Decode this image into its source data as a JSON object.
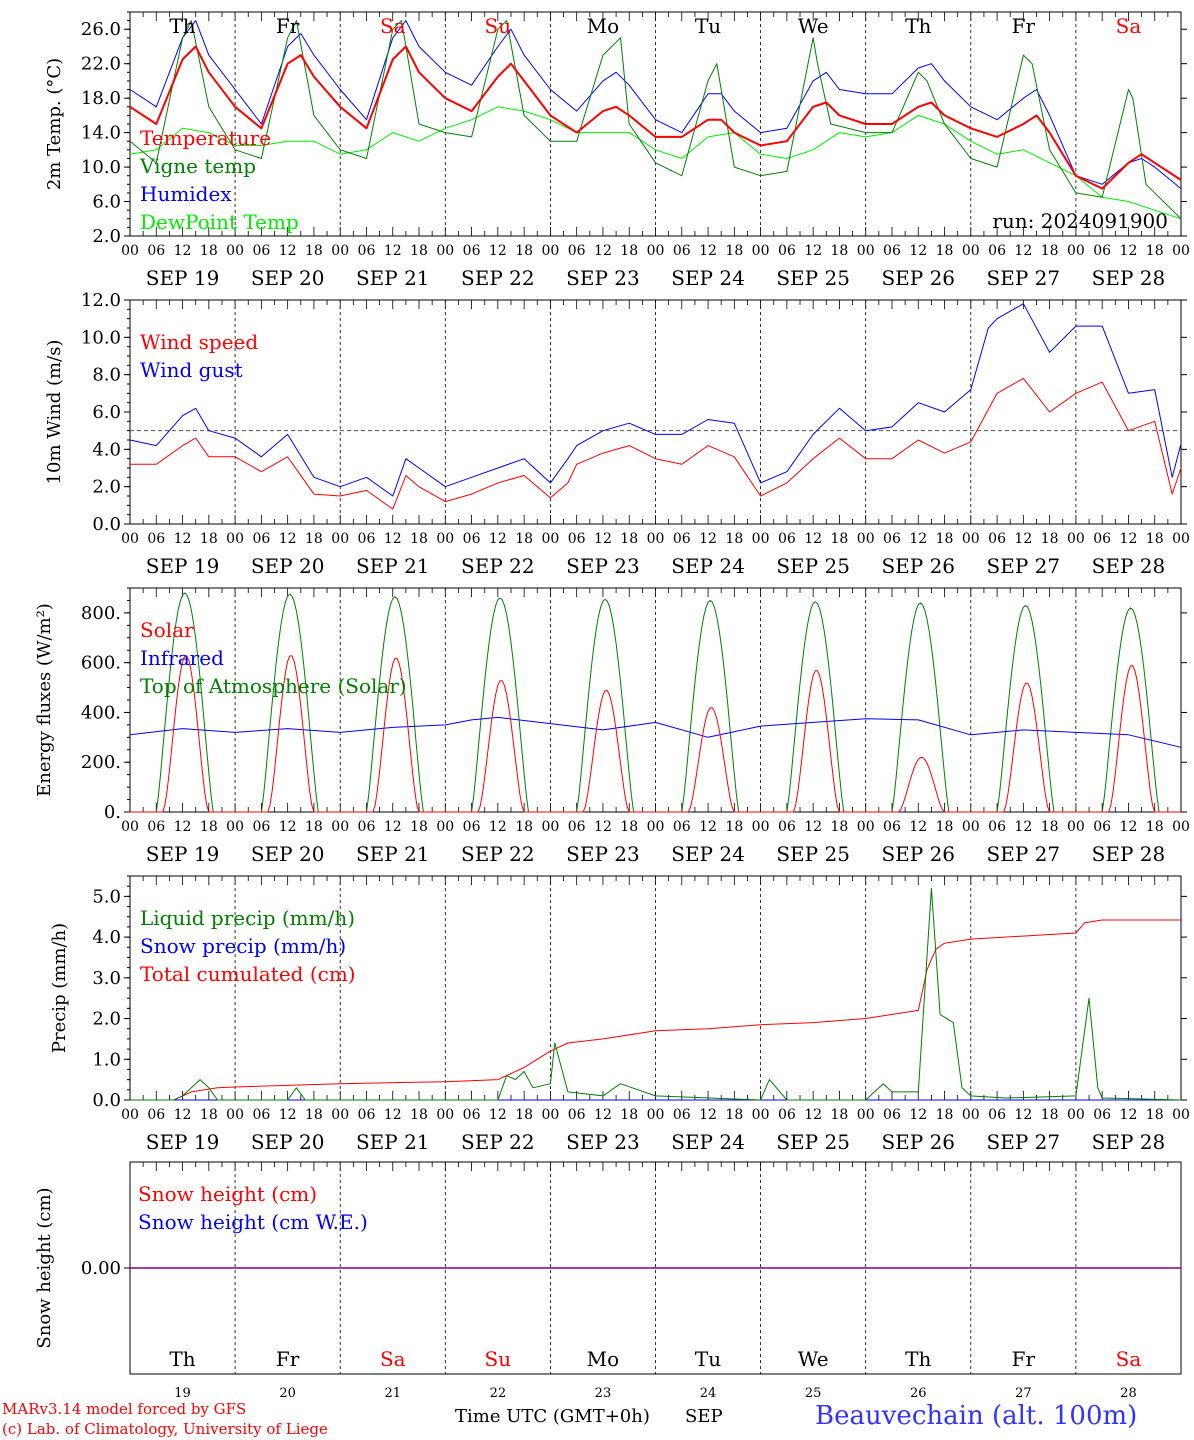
{
  "days": [
    "Th",
    "Fr",
    "Sa",
    "Su",
    "Mo",
    "Tu",
    "We",
    "Th",
    "Fr",
    "Sa"
  ],
  "weekend_days": [
    "Sa",
    "Su"
  ],
  "day_numbers": [
    "19",
    "20",
    "21",
    "22",
    "23",
    "24",
    "25",
    "26",
    "27",
    "28"
  ],
  "date_labels": [
    "SEP 19",
    "SEP 20",
    "SEP 21",
    "SEP 22",
    "SEP 23",
    "SEP 24",
    "SEP 25",
    "SEP 26",
    "SEP 27",
    "SEP 28"
  ],
  "hour_ticks": [
    "00",
    "06",
    "12",
    "18"
  ],
  "run_label": "run: 2024091900",
  "footer": {
    "model": "MARv3.14 model forced by GFS",
    "credit": "(c) Lab. of Climatology, University of Liege",
    "xaxis": "Time UTC (GMT+0h)",
    "month": "SEP",
    "station": "Beauvechain (alt. 100m)"
  },
  "colors": {
    "red": "#ff0000",
    "green": "#008000",
    "blue": "#0000ff",
    "lightgreen": "#00ee00",
    "purple": "#800080",
    "weekend": "#ff0000"
  },
  "chart_data": [
    {
      "type": "line",
      "ylabel": "2m Temp. (°C)",
      "ylim": [
        2,
        28
      ],
      "yticks": [
        "2.0",
        "6.0",
        "10.0",
        "14.0",
        "18.0",
        "22.0",
        "26.0"
      ],
      "x_unit": "hours since 2024-09-19 00 UTC",
      "series": [
        {
          "name": "Temperature",
          "color": "#ff0000",
          "width": 2,
          "x": [
            0,
            6,
            12,
            15,
            18,
            24,
            30,
            36,
            39,
            42,
            48,
            54,
            60,
            63,
            66,
            72,
            78,
            84,
            87,
            90,
            96,
            102,
            108,
            111,
            114,
            120,
            126,
            132,
            135,
            138,
            144,
            150,
            156,
            159,
            162,
            168,
            174,
            180,
            183,
            186,
            192,
            198,
            204,
            207,
            210,
            216,
            222,
            228,
            231,
            234,
            240
          ],
          "y": [
            17,
            15,
            22.5,
            24,
            21,
            17,
            14.5,
            22,
            23,
            20.5,
            17,
            14.5,
            22.5,
            24,
            21,
            18,
            16.5,
            20.5,
            22,
            20,
            16,
            14,
            16.5,
            17,
            16,
            13.5,
            13.5,
            15.5,
            15.5,
            14,
            12.5,
            13,
            17,
            17.5,
            16,
            15,
            15,
            17,
            17.5,
            16,
            14.5,
            13.5,
            15,
            16,
            14,
            9,
            7.5,
            10.5,
            11.5,
            10.5,
            8.5
          ]
        },
        {
          "name": "Vigne temp",
          "color": "#008000",
          "width": 1,
          "x": [
            0,
            6,
            12,
            14,
            18,
            24,
            30,
            36,
            38,
            42,
            48,
            54,
            60,
            62,
            66,
            72,
            78,
            84,
            86,
            90,
            96,
            102,
            108,
            112,
            114,
            120,
            126,
            132,
            134,
            138,
            144,
            150,
            156,
            157,
            160,
            168,
            174,
            180,
            182,
            186,
            192,
            198,
            204,
            206,
            210,
            216,
            222,
            228,
            229,
            232,
            240
          ],
          "y": [
            13,
            10.5,
            25,
            27,
            17,
            12,
            11,
            25,
            27,
            16,
            12,
            11,
            26,
            27,
            15,
            14,
            13.5,
            26,
            27,
            16,
            13,
            13,
            23,
            25,
            15,
            10.5,
            9,
            20,
            22,
            10,
            9,
            9.5,
            25,
            22,
            15,
            14,
            14,
            21,
            20,
            15,
            11,
            10,
            23,
            22,
            12,
            7,
            6.5,
            19,
            18,
            8,
            4
          ]
        },
        {
          "name": "Humidex",
          "color": "#0000ff",
          "width": 1,
          "x": [
            0,
            6,
            12,
            15,
            18,
            24,
            30,
            36,
            39,
            42,
            48,
            54,
            60,
            63,
            66,
            72,
            78,
            84,
            87,
            90,
            96,
            102,
            108,
            111,
            114,
            120,
            126,
            132,
            135,
            138,
            144,
            150,
            156,
            159,
            162,
            168,
            174,
            180,
            183,
            186,
            192,
            198,
            204,
            207,
            210,
            216,
            222,
            228,
            231,
            234,
            240
          ],
          "y": [
            19,
            17,
            25,
            27,
            23,
            19,
            15,
            24,
            25.5,
            23,
            19,
            15.5,
            25,
            27,
            24,
            21,
            19.5,
            24,
            26,
            23,
            19,
            16.5,
            20,
            21,
            19.5,
            15.5,
            14,
            18.5,
            18.5,
            16.5,
            14,
            14.5,
            20,
            21,
            19,
            18.5,
            18.5,
            21.5,
            22,
            20,
            17,
            15.5,
            18,
            19,
            16,
            9,
            8,
            10.5,
            11,
            10,
            7.5
          ]
        },
        {
          "name": "DewPoint Temp",
          "color": "#00ee00",
          "width": 1,
          "x": [
            0,
            6,
            12,
            18,
            24,
            30,
            36,
            42,
            48,
            54,
            60,
            66,
            72,
            78,
            84,
            90,
            96,
            102,
            108,
            114,
            120,
            126,
            132,
            138,
            144,
            150,
            156,
            162,
            168,
            174,
            180,
            186,
            192,
            198,
            204,
            210,
            216,
            222,
            228,
            234,
            240
          ],
          "y": [
            11.5,
            12,
            14.5,
            14,
            12.5,
            12.5,
            13,
            13,
            11.5,
            12,
            14,
            13,
            14.5,
            15.5,
            17,
            16.5,
            15.5,
            14,
            14,
            14,
            12,
            11,
            13.5,
            14,
            11.5,
            11,
            12,
            14,
            13.5,
            14,
            16,
            15,
            13,
            11.5,
            12,
            10.5,
            9,
            6.5,
            6,
            5,
            4
          ]
        }
      ],
      "legend": [
        "Temperature",
        "Vigne temp",
        "Humidex",
        "DewPoint Temp"
      ],
      "legend_placement": "top-left"
    },
    {
      "type": "line",
      "ylabel": "10m Wind (m/s)",
      "ylim": [
        0,
        12
      ],
      "yticks": [
        "0.0",
        "2.0",
        "4.0",
        "6.0",
        "8.0",
        "10.0",
        "12.0"
      ],
      "reference_line": 5,
      "series": [
        {
          "name": "Wind speed",
          "color": "#ff0000",
          "x": [
            0,
            6,
            12,
            15,
            18,
            24,
            30,
            36,
            42,
            48,
            54,
            60,
            63,
            66,
            72,
            78,
            84,
            90,
            96,
            100,
            102,
            108,
            114,
            120,
            126,
            132,
            138,
            144,
            150,
            156,
            162,
            168,
            174,
            180,
            186,
            192,
            198,
            204,
            210,
            216,
            222,
            228,
            234,
            238,
            240
          ],
          "y": [
            3.2,
            3.2,
            4.2,
            4.6,
            3.6,
            3.6,
            2.8,
            3.6,
            1.6,
            1.5,
            1.8,
            0.8,
            2.6,
            2.0,
            1.2,
            1.6,
            2.2,
            2.6,
            1.4,
            2.2,
            3.2,
            3.8,
            4.2,
            3.5,
            3.2,
            4.2,
            3.6,
            1.5,
            2.2,
            3.5,
            4.6,
            3.5,
            3.5,
            4.5,
            3.8,
            4.4,
            7.0,
            7.8,
            6.0,
            7.0,
            7.6,
            5.0,
            5.5,
            1.6,
            3.0
          ]
        },
        {
          "name": "Wind gust",
          "color": "#0000ff",
          "x": [
            0,
            6,
            12,
            15,
            18,
            24,
            30,
            36,
            42,
            48,
            54,
            60,
            63,
            66,
            72,
            78,
            84,
            90,
            96,
            100,
            102,
            108,
            114,
            120,
            126,
            132,
            138,
            144,
            150,
            156,
            162,
            168,
            174,
            180,
            186,
            192,
            196,
            198,
            204,
            210,
            216,
            222,
            228,
            234,
            238,
            240
          ],
          "y": [
            4.5,
            4.2,
            5.8,
            6.2,
            5.0,
            4.6,
            3.6,
            4.8,
            2.5,
            2.0,
            2.5,
            1.5,
            3.5,
            3.0,
            2.0,
            2.5,
            3.0,
            3.5,
            2.2,
            3.5,
            4.2,
            5.0,
            5.4,
            4.8,
            4.8,
            5.6,
            5.4,
            2.2,
            2.8,
            4.8,
            6.2,
            5.0,
            5.2,
            6.5,
            6.0,
            7.2,
            10.5,
            11,
            11.8,
            9.2,
            10.6,
            10.6,
            7.0,
            7.2,
            2.5,
            4.3
          ]
        }
      ],
      "legend": [
        "Wind speed",
        "Wind gust"
      ],
      "legend_placement": "top-left"
    },
    {
      "type": "line",
      "ylabel": "Energy fluxes (W/m²)",
      "ylim": [
        0,
        900
      ],
      "yticks": [
        "0.",
        "200.",
        "400.",
        "600.",
        "800."
      ],
      "series": [
        {
          "name": "Solar",
          "color": "#ff0000",
          "peaks_hours_after_midnight": 13,
          "daily_peaks": [
            630,
            630,
            620,
            530,
            490,
            420,
            570,
            220,
            520,
            590
          ]
        },
        {
          "name": "Infrared",
          "color": "#0000ff",
          "x": [
            0,
            12,
            24,
            36,
            48,
            60,
            72,
            78,
            84,
            96,
            108,
            120,
            132,
            144,
            156,
            168,
            180,
            192,
            204,
            216,
            228,
            240
          ],
          "y": [
            310,
            335,
            320,
            335,
            320,
            340,
            350,
            370,
            380,
            355,
            330,
            360,
            300,
            345,
            360,
            375,
            370,
            310,
            330,
            320,
            310,
            260
          ]
        },
        {
          "name": "Top of Atmosphere (Solar)",
          "color": "#008000",
          "daily_peaks": [
            880,
            875,
            865,
            860,
            855,
            850,
            845,
            840,
            830,
            820
          ]
        }
      ],
      "legend": [
        "Solar",
        "Infrared",
        "Top of Atmosphere (Solar)"
      ],
      "legend_placement": "top-left"
    },
    {
      "type": "line",
      "ylabel": "Precip (mm/h)",
      "ylim": [
        0,
        5.5
      ],
      "yticks": [
        "0.0",
        "1.0",
        "2.0",
        "3.0",
        "4.0",
        "5.0"
      ],
      "series": [
        {
          "name": "Liquid precip (mm/h)",
          "color": "#008000",
          "x": [
            0,
            10,
            12,
            14,
            16,
            18,
            20,
            24,
            36,
            38,
            40,
            48,
            60,
            72,
            84,
            86,
            88,
            90,
            92,
            96,
            97,
            100,
            108,
            112,
            120,
            144,
            146,
            150,
            168,
            172,
            174,
            180,
            183,
            185,
            188,
            190,
            192,
            200,
            216,
            219,
            221,
            222,
            240
          ],
          "y": [
            0,
            0,
            0.1,
            0.3,
            0.5,
            0.3,
            0,
            0,
            0,
            0.3,
            0,
            0,
            0,
            0,
            0,
            0.6,
            0.5,
            0.7,
            0.3,
            0.4,
            1.4,
            0.2,
            0.1,
            0.4,
            0.1,
            0,
            0.5,
            0,
            0,
            0.4,
            0.2,
            0.2,
            5.2,
            2.1,
            1.9,
            0.3,
            0.1,
            0.05,
            0.1,
            2.5,
            0.3,
            0.05,
            0
          ]
        },
        {
          "name": "Snow precip (mm/h)",
          "color": "#0000ff",
          "x": [
            0,
            240
          ],
          "y": [
            0,
            0
          ]
        },
        {
          "name": "Total cumulated (cm)",
          "color": "#ff0000",
          "x": [
            0,
            10,
            14,
            20,
            24,
            48,
            72,
            84,
            90,
            96,
            100,
            108,
            120,
            132,
            144,
            156,
            168,
            180,
            182,
            184,
            186,
            192,
            216,
            218,
            222,
            240
          ],
          "y": [
            0,
            0,
            0.2,
            0.3,
            0.32,
            0.4,
            0.45,
            0.5,
            0.8,
            1.2,
            1.4,
            1.5,
            1.7,
            1.75,
            1.85,
            1.9,
            2.0,
            2.2,
            3.2,
            3.7,
            3.85,
            3.95,
            4.1,
            4.35,
            4.42,
            4.42
          ]
        }
      ],
      "legend": [
        "Liquid precip (mm/h)",
        "Snow precip (mm/h)",
        "Total cumulated (cm)"
      ],
      "legend_placement": "top-left"
    },
    {
      "type": "line",
      "ylabel": "Snow height (cm)",
      "yticks": [
        "0.00"
      ],
      "series": [
        {
          "name": "Snow height (cm)",
          "color": "#ff0000",
          "x": [
            0,
            240
          ],
          "y": [
            0,
            0
          ]
        },
        {
          "name": "Snow height (cm W.E.)",
          "color": "#0000ff",
          "x": [
            0,
            240
          ],
          "y": [
            0,
            0
          ]
        }
      ],
      "legend": [
        "Snow height (cm)",
        "Snow height (cm W.E.)"
      ],
      "legend_placement": "top-left"
    }
  ]
}
